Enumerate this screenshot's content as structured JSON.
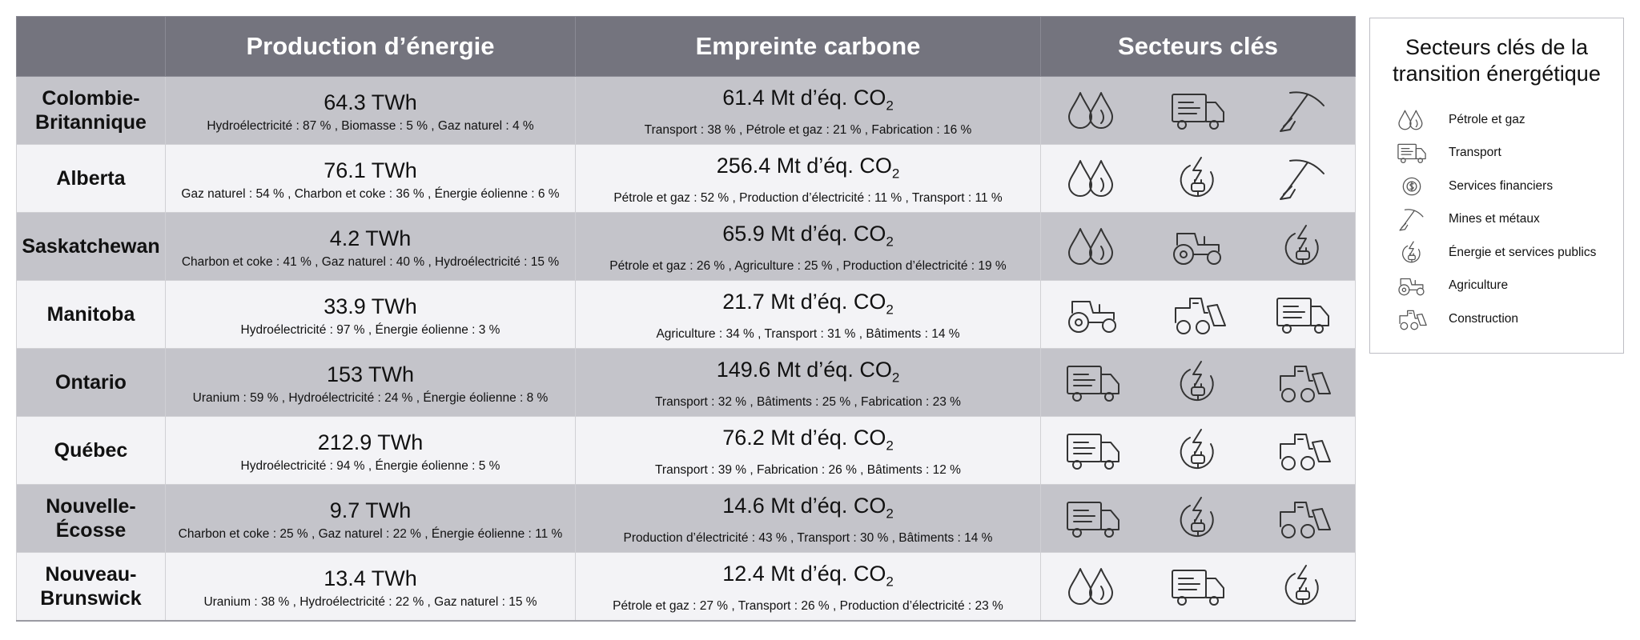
{
  "table": {
    "headers": {
      "production": "Production d’énergie",
      "carbon": "Empreinte carbone",
      "sectors": "Secteurs clés"
    },
    "co2_unit": "Mt d’éq. CO",
    "co2_sub": "2",
    "rows": [
      {
        "province": "Colombie-Britannique",
        "production_value": "64.3 TWh",
        "production_detail": "Hydroélectricité : 87 % , Biomasse : 5 % , Gaz naturel : 4 %",
        "carbon_value": "61.4",
        "carbon_detail": "Transport : 38 % , Pétrole et gaz : 21 % , Fabrication  : 16 %",
        "sector_icons": [
          "oil-gas-icon",
          "transport-truck-icon",
          "mining-pickaxe-icon"
        ]
      },
      {
        "province": "Alberta",
        "production_value": "76.1 TWh",
        "production_detail": "Gaz naturel : 54 % , Charbon et coke : 36 % , Énergie éolienne  : 6 %",
        "carbon_value": "256.4",
        "carbon_detail": "Pétrole et gaz : 52 % , Production d’électricité : 11 % , Transport : 11 %",
        "sector_icons": [
          "oil-gas-icon",
          "energy-utilities-icon",
          "mining-pickaxe-icon"
        ]
      },
      {
        "province": "Saskatchewan",
        "production_value": "4.2 TWh",
        "production_detail": "Charbon et coke : 41 % , Gaz naturel : 40 % , Hydroélectricité : 15 %",
        "carbon_value": "65.9",
        "carbon_detail": "Pétrole et gaz : 26 % , Agriculture : 25 % , Production d’électricité : 19 %",
        "sector_icons": [
          "oil-gas-icon",
          "agriculture-tractor-icon",
          "energy-utilities-icon"
        ]
      },
      {
        "province": "Manitoba",
        "production_value": "33.9 TWh",
        "production_detail": "Hydroélectricité : 97 % , Énergie éolienne : 3 %",
        "carbon_value": "21.7",
        "carbon_detail": "Agriculture : 34 % , Transport : 31 % , Bâtiments : 14 %",
        "sector_icons": [
          "agriculture-tractor-icon",
          "construction-loader-icon",
          "transport-truck-icon"
        ]
      },
      {
        "province": "Ontario",
        "production_value": "153 TWh",
        "production_detail": "Uranium : 59 % , Hydroélectricité : 24 % , Énergie éolienne : 8 %",
        "carbon_value": "149.6",
        "carbon_detail": "Transport : 32 % , Bâtiments : 25 % , Fabrication : 23 %",
        "sector_icons": [
          "transport-truck-icon",
          "energy-utilities-icon",
          "construction-loader-icon"
        ]
      },
      {
        "province": "Québec",
        "production_value": "212.9 TWh",
        "production_detail": "Hydroélectricité : 94 % , Énergie éolienne : 5 %",
        "carbon_value": "76.2",
        "carbon_detail": "Transport : 39 % , Fabrication : 26 % , Bâtiments : 12 %",
        "sector_icons": [
          "transport-truck-icon",
          "energy-utilities-icon",
          "construction-loader-icon"
        ]
      },
      {
        "province": "Nouvelle-Écosse",
        "production_value": "9.7 TWh",
        "production_detail": "Charbon et coke : 25 % , Gaz naturel : 22 % , Énergie éolienne : 11 %",
        "carbon_value": "14.6",
        "carbon_detail": "Production d’électricité : 43 % , Transport : 30 % , Bâtiments : 14 %",
        "sector_icons": [
          "transport-truck-icon",
          "energy-utilities-icon",
          "construction-loader-icon"
        ]
      },
      {
        "province": "Nouveau-Brunswick",
        "production_value": "13.4 TWh",
        "production_detail": "Uranium : 38 % , Hydroélectricité : 22 % , Gaz naturel : 15 %",
        "carbon_value": "12.4",
        "carbon_detail": "Pétrole et gaz : 27 % , Transport : 26 % , Production d’électricité : 23 %",
        "sector_icons": [
          "oil-gas-icon",
          "transport-truck-icon",
          "energy-utilities-icon"
        ]
      }
    ]
  },
  "legend": {
    "title": "Secteurs clés de la transition énergétique",
    "items": [
      {
        "icon": "oil-gas-icon",
        "label": "Pétrole et gaz"
      },
      {
        "icon": "transport-truck-icon",
        "label": "Transport"
      },
      {
        "icon": "financial-services-icon",
        "label": "Services financiers"
      },
      {
        "icon": "mining-pickaxe-icon",
        "label": "Mines et métaux"
      },
      {
        "icon": "energy-utilities-icon",
        "label": "Énergie et services publics"
      },
      {
        "icon": "agriculture-tractor-icon",
        "label": "Agriculture"
      },
      {
        "icon": "construction-loader-icon",
        "label": "Construction"
      }
    ]
  },
  "colors": {
    "header_bg": "#74747e",
    "row_dark": "#c4c4ca",
    "row_light": "#f3f3f6",
    "icon_stroke": "#333333"
  }
}
